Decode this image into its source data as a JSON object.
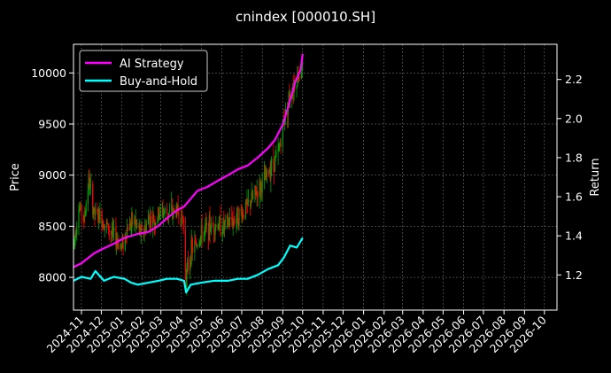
{
  "chart_data": {
    "type": "candlestick-line",
    "title": "cnindex [000010.SH]",
    "xlabel": "",
    "ylabel_left": "Price",
    "ylabel_right": "Return",
    "x_ticks": [
      "2024-11",
      "2024-12",
      "2025-01",
      "2025-02",
      "2025-03",
      "2025-04",
      "2025-05",
      "2025-06",
      "2025-07",
      "2025-08",
      "2025-09",
      "2025-10",
      "2025-11",
      "2025-12",
      "2026-01",
      "2026-02",
      "2026-03",
      "2026-04",
      "2026-05",
      "2026-06",
      "2026-07",
      "2026-08",
      "2026-09",
      "2026-10"
    ],
    "xlim": [
      "2024-10-20",
      "2026-10-20"
    ],
    "y_left_ticks": [
      8000,
      8500,
      9000,
      9500,
      10000
    ],
    "ylim_left": [
      7680,
      10280
    ],
    "y_right_ticks": [
      1.2,
      1.4,
      1.6,
      1.8,
      2.0,
      2.2
    ],
    "ylim_right": [
      1.02,
      2.38
    ],
    "grid": true,
    "legend_position": "upper-left",
    "colors": {
      "up": "#00a000",
      "down": "#ff0000",
      "ai": "#ff00ff",
      "bh": "#00ffff"
    },
    "price_path": [
      [
        "2024-10-20",
        8300
      ],
      [
        "2024-10-28",
        8700
      ],
      [
        "2024-11-05",
        8560
      ],
      [
        "2024-11-12",
        8950
      ],
      [
        "2024-11-20",
        8620
      ],
      [
        "2024-12-01",
        8580
      ],
      [
        "2024-12-15",
        8450
      ],
      [
        "2025-01-01",
        8300
      ],
      [
        "2025-01-10",
        8500
      ],
      [
        "2025-01-20",
        8550
      ],
      [
        "2025-02-01",
        8400
      ],
      [
        "2025-02-10",
        8580
      ],
      [
        "2025-02-20",
        8550
      ],
      [
        "2025-03-01",
        8650
      ],
      [
        "2025-03-15",
        8620
      ],
      [
        "2025-03-25",
        8660
      ],
      [
        "2025-04-03",
        8570
      ],
      [
        "2025-04-08",
        8000
      ],
      [
        "2025-04-15",
        8250
      ],
      [
        "2025-04-25",
        8350
      ],
      [
        "2025-05-05",
        8450
      ],
      [
        "2025-05-15",
        8500
      ],
      [
        "2025-05-25",
        8520
      ],
      [
        "2025-06-05",
        8500
      ],
      [
        "2025-06-15",
        8550
      ],
      [
        "2025-06-25",
        8600
      ],
      [
        "2025-07-05",
        8650
      ],
      [
        "2025-07-15",
        8750
      ],
      [
        "2025-07-25",
        8850
      ],
      [
        "2025-08-05",
        8950
      ],
      [
        "2025-08-15",
        9100
      ],
      [
        "2025-08-25",
        9200
      ],
      [
        "2025-09-03",
        9550
      ],
      [
        "2025-09-12",
        9800
      ],
      [
        "2025-09-22",
        9950
      ],
      [
        "2025-10-01",
        10050
      ]
    ],
    "series": [
      {
        "name": "AI Strategy",
        "axis": "right",
        "points": [
          [
            "2024-10-20",
            1.24
          ],
          [
            "2024-11-01",
            1.26
          ],
          [
            "2024-11-20",
            1.31
          ],
          [
            "2024-12-01",
            1.33
          ],
          [
            "2024-12-20",
            1.36
          ],
          [
            "2025-01-05",
            1.39
          ],
          [
            "2025-01-25",
            1.41
          ],
          [
            "2025-02-10",
            1.42
          ],
          [
            "2025-02-25",
            1.45
          ],
          [
            "2025-03-10",
            1.49
          ],
          [
            "2025-03-25",
            1.53
          ],
          [
            "2025-04-05",
            1.55
          ],
          [
            "2025-04-15",
            1.59
          ],
          [
            "2025-04-25",
            1.63
          ],
          [
            "2025-05-10",
            1.65
          ],
          [
            "2025-05-25",
            1.68
          ],
          [
            "2025-06-10",
            1.71
          ],
          [
            "2025-06-25",
            1.74
          ],
          [
            "2025-07-10",
            1.76
          ],
          [
            "2025-07-25",
            1.8
          ],
          [
            "2025-08-10",
            1.85
          ],
          [
            "2025-08-20",
            1.89
          ],
          [
            "2025-09-01",
            1.97
          ],
          [
            "2025-09-10",
            2.07
          ],
          [
            "2025-09-20",
            2.19
          ],
          [
            "2025-09-28",
            2.25
          ],
          [
            "2025-10-01",
            2.33
          ]
        ]
      },
      {
        "name": "Buy-and-Hold",
        "axis": "right",
        "points": [
          [
            "2024-10-20",
            1.17
          ],
          [
            "2024-11-01",
            1.19
          ],
          [
            "2024-11-15",
            1.18
          ],
          [
            "2024-11-22",
            1.22
          ],
          [
            "2024-12-05",
            1.17
          ],
          [
            "2024-12-20",
            1.19
          ],
          [
            "2025-01-05",
            1.18
          ],
          [
            "2025-01-15",
            1.16
          ],
          [
            "2025-01-25",
            1.15
          ],
          [
            "2025-02-10",
            1.16
          ],
          [
            "2025-02-25",
            1.17
          ],
          [
            "2025-03-10",
            1.18
          ],
          [
            "2025-03-25",
            1.18
          ],
          [
            "2025-04-05",
            1.17
          ],
          [
            "2025-04-08",
            1.11
          ],
          [
            "2025-04-15",
            1.15
          ],
          [
            "2025-05-01",
            1.16
          ],
          [
            "2025-05-20",
            1.17
          ],
          [
            "2025-06-10",
            1.17
          ],
          [
            "2025-06-25",
            1.18
          ],
          [
            "2025-07-10",
            1.18
          ],
          [
            "2025-07-25",
            1.2
          ],
          [
            "2025-08-10",
            1.23
          ],
          [
            "2025-08-25",
            1.25
          ],
          [
            "2025-09-03",
            1.29
          ],
          [
            "2025-09-12",
            1.35
          ],
          [
            "2025-09-22",
            1.34
          ],
          [
            "2025-10-01",
            1.39
          ]
        ]
      }
    ]
  }
}
